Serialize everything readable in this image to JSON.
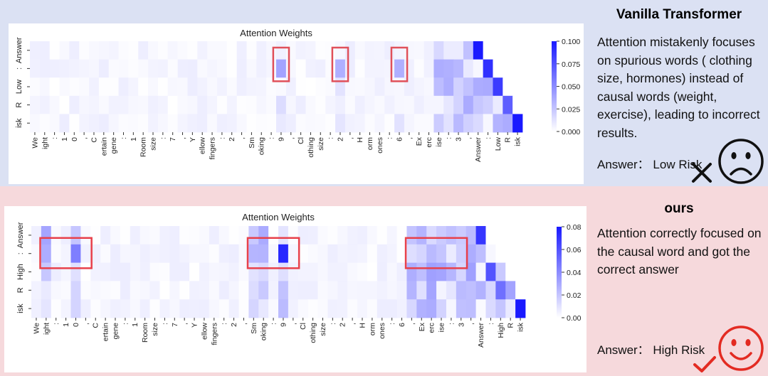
{
  "chart_data": [
    {
      "type": "heatmap",
      "title": "Attention Weights",
      "x_tokens": [
        "We",
        "ight",
        ":",
        "1",
        "0",
        ",",
        "C",
        "ertain",
        "gene",
        ":",
        "1",
        "Room",
        "size",
        ":",
        "7",
        ",",
        "Y",
        "ellow",
        "fingers",
        ":",
        "2",
        ",",
        "Sm",
        "oking",
        ":",
        "9",
        ",",
        "Cl",
        "othing",
        "size",
        ":",
        "2",
        ",",
        "H",
        "orm",
        "ones",
        ":",
        "6",
        ",",
        "Ex",
        "erc",
        "ise",
        ":",
        "3",
        ",",
        "Answer",
        ":",
        "Low",
        "R",
        "isk"
      ],
      "y_tokens": [
        "Answer",
        ":",
        "Low",
        "R",
        "isk"
      ],
      "colorbar": {
        "min": 0,
        "max": 0.1,
        "ticks": [
          "0.000",
          "0.025",
          "0.050",
          "0.075",
          "0.100"
        ]
      },
      "strong_cells": [
        {
          "row": 0,
          "col": 45,
          "value": 0.1
        },
        {
          "row": 1,
          "col": 46,
          "value": 0.09
        },
        {
          "row": 2,
          "col": 47,
          "value": 0.085
        },
        {
          "row": 3,
          "col": 48,
          "value": 0.07
        },
        {
          "row": 4,
          "col": 49,
          "value": 0.1
        },
        {
          "row": 1,
          "col": 25,
          "value": 0.04
        },
        {
          "row": 1,
          "col": 31,
          "value": 0.035
        },
        {
          "row": 1,
          "col": 37,
          "value": 0.035
        }
      ],
      "highlight_boxes": [
        {
          "label": "9",
          "col_start": 25,
          "col_end": 25
        },
        {
          "label": "2",
          "col_start": 31,
          "col_end": 31
        },
        {
          "label": "6",
          "col_start": 37,
          "col_end": 37
        }
      ]
    },
    {
      "type": "heatmap",
      "title": "Attention Weights",
      "x_tokens": [
        "We",
        "ight",
        ":",
        "1",
        "0",
        ",",
        "C",
        "ertain",
        "gene",
        ":",
        "1",
        "Room",
        "size",
        ":",
        "7",
        ",",
        "Y",
        "ellow",
        "fingers",
        ":",
        "2",
        ",",
        "Sm",
        "oking",
        ":",
        "9",
        ",",
        "Cl",
        "othing",
        "size",
        ":",
        "2",
        ",",
        "H",
        "orm",
        "ones",
        ":",
        "6",
        ",",
        "Ex",
        "erc",
        "ise",
        ":",
        "3",
        ",",
        "Answer",
        ":",
        "High",
        "R",
        "isk"
      ],
      "y_tokens": [
        "Answer",
        ":",
        "High",
        "R",
        "isk"
      ],
      "colorbar": {
        "min": 0,
        "max": 0.08,
        "ticks": [
          "0.00",
          "0.02",
          "0.04",
          "0.06",
          "0.08"
        ]
      },
      "strong_cells": [
        {
          "row": 1,
          "col": 25,
          "value": 0.075
        },
        {
          "row": 1,
          "col": 4,
          "value": 0.045
        },
        {
          "row": 0,
          "col": 45,
          "value": 0.07
        },
        {
          "row": 2,
          "col": 46,
          "value": 0.06
        },
        {
          "row": 3,
          "col": 47,
          "value": 0.05
        },
        {
          "row": 4,
          "col": 49,
          "value": 0.08
        }
      ],
      "highlight_boxes": [
        {
          "label": "weight",
          "col_start": 1,
          "col_end": 5
        },
        {
          "label": "smoking",
          "col_start": 22,
          "col_end": 26
        },
        {
          "label": "exercise",
          "col_start": 38,
          "col_end": 43
        }
      ]
    }
  ],
  "top_panel": {
    "title": "Vanilla Transformer",
    "description": "Attention mistakenly focuses on spurious words ( clothing size, hormones) instead of causal words (weight, exercise), leading to incorrect results.",
    "answer": "Answer：  Low Risk",
    "face": "sad-face-icon",
    "mark": "cross-mark-icon",
    "accent": "#111111"
  },
  "bottom_panel": {
    "title": "ours",
    "description": "Attention correctly focused on the causal word and got the correct answer",
    "answer": "Answer：  High Risk",
    "face": "smiley-face-icon",
    "mark": "check-mark-icon",
    "accent": "#e32b22"
  }
}
